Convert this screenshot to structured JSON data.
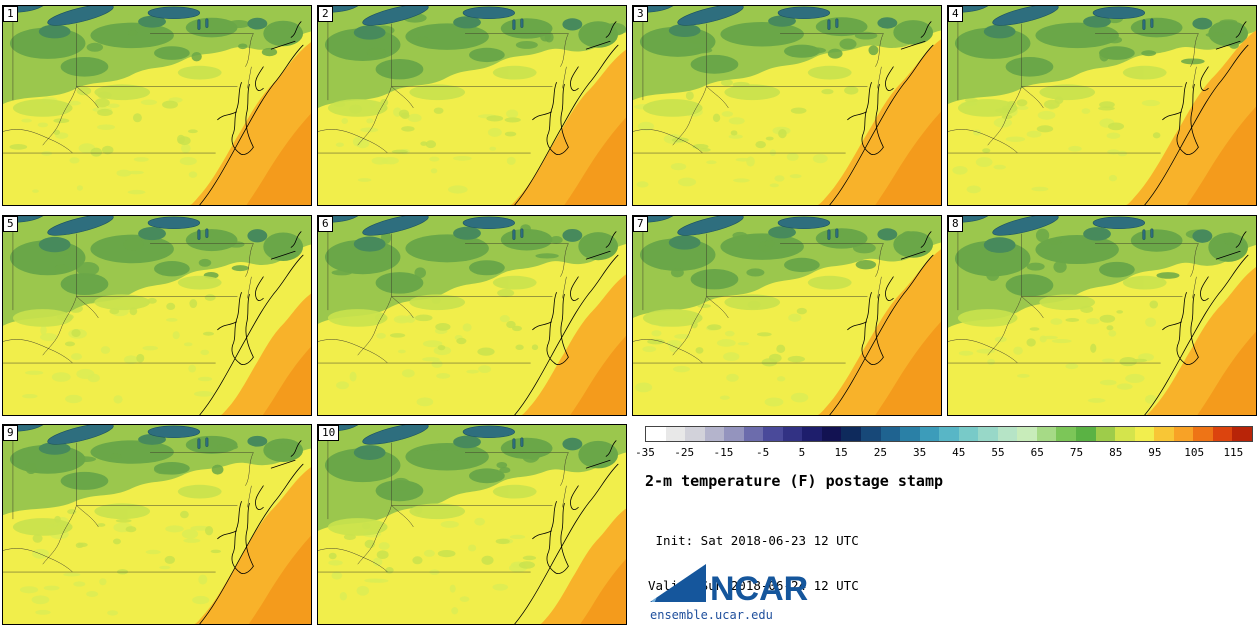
{
  "panels": [
    {
      "label": "1"
    },
    {
      "label": "2"
    },
    {
      "label": "3"
    },
    {
      "label": "4"
    },
    {
      "label": "5"
    },
    {
      "label": "6"
    },
    {
      "label": "7"
    },
    {
      "label": "8"
    },
    {
      "label": "9"
    },
    {
      "label": "10"
    }
  ],
  "colorbar": {
    "tick_labels": [
      "-35",
      "-25",
      "-15",
      "-5",
      "5",
      "15",
      "25",
      "35",
      "45",
      "55",
      "65",
      "75",
      "85",
      "95",
      "105",
      "115"
    ],
    "colors": [
      "#ffffff",
      "#e8e8e8",
      "#d2d2da",
      "#b4b4cc",
      "#9494be",
      "#6c6cac",
      "#4a4a9a",
      "#323284",
      "#1e1e6c",
      "#121252",
      "#0e2a5c",
      "#174878",
      "#1f6390",
      "#2a80a6",
      "#3c9cba",
      "#58b6c6",
      "#78cac8",
      "#98d8c8",
      "#b6e4c6",
      "#c8ecba",
      "#a6da86",
      "#7cc658",
      "#5ab244",
      "#9ecc4a",
      "#d4e44c",
      "#f2ee4e",
      "#f8c636",
      "#f8a226",
      "#ee7416",
      "#dc440e",
      "#b82408"
    ]
  },
  "info": {
    "title": "2-m temperature (F) postage stamp",
    "init": " Init: Sat 2018-06-23 12 UTC",
    "valid": "Valid: Sun 2018-06-24 12 UTC"
  },
  "branding": {
    "logo_text": "NCAR",
    "site": "ensemble.ucar.edu",
    "logo_color": "#15569c"
  },
  "map_colors": {
    "base": "#f1ee4b",
    "speckle": "#dcec55",
    "pale_green": "#c9e24e",
    "band": "#9bc74d",
    "blob": "#6aa748",
    "deep": "#478a5c",
    "lake": "#2e6e7e",
    "lake_stroke": "#1c5160",
    "ocean": "#f8b22a",
    "ocean2": "#f49b1c",
    "coast": "#000000",
    "border": "#40402c"
  }
}
